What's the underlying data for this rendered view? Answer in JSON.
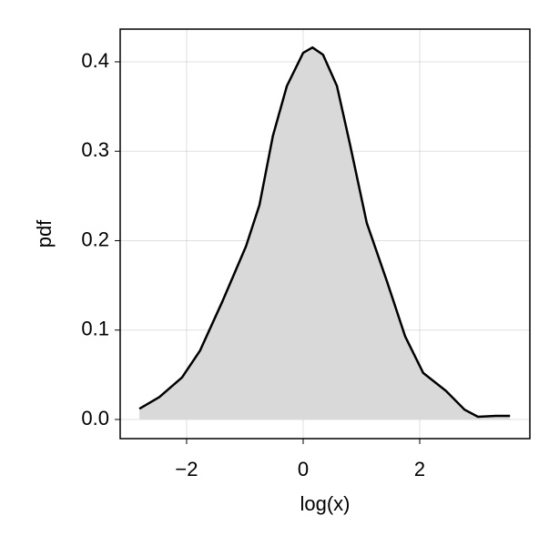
{
  "chart_data": {
    "type": "density",
    "xlabel": "log(x)",
    "ylabel": "pdf",
    "x": [
      -2.81,
      -2.47,
      -2.08,
      -1.77,
      -1.38,
      -0.98,
      -0.75,
      -0.52,
      -0.28,
      0,
      0.16,
      0.34,
      0.58,
      0.81,
      1.09,
      1.44,
      1.75,
      2.06,
      2.45,
      2.77,
      3.0,
      3.31,
      3.55
    ],
    "values": [
      0.012,
      0.025,
      0.047,
      0.077,
      0.133,
      0.194,
      0.24,
      0.317,
      0.373,
      0.41,
      0.416,
      0.408,
      0.373,
      0.306,
      0.22,
      0.154,
      0.093,
      0.052,
      0.032,
      0.011,
      0.003,
      0.004,
      0.004
    ],
    "color": "#000000",
    "fill": "#d9d9d9",
    "xlim": [
      -3.14,
      3.89
    ],
    "ylim": [
      -0.0214,
      0.4366
    ],
    "xticks": [
      {
        "value": -2,
        "label": "−2"
      },
      0,
      2
    ],
    "yticks": [
      {
        "value": 0,
        "label": "0.0"
      },
      0.1,
      0.2,
      0.3,
      0.4
    ],
    "grid": true
  }
}
